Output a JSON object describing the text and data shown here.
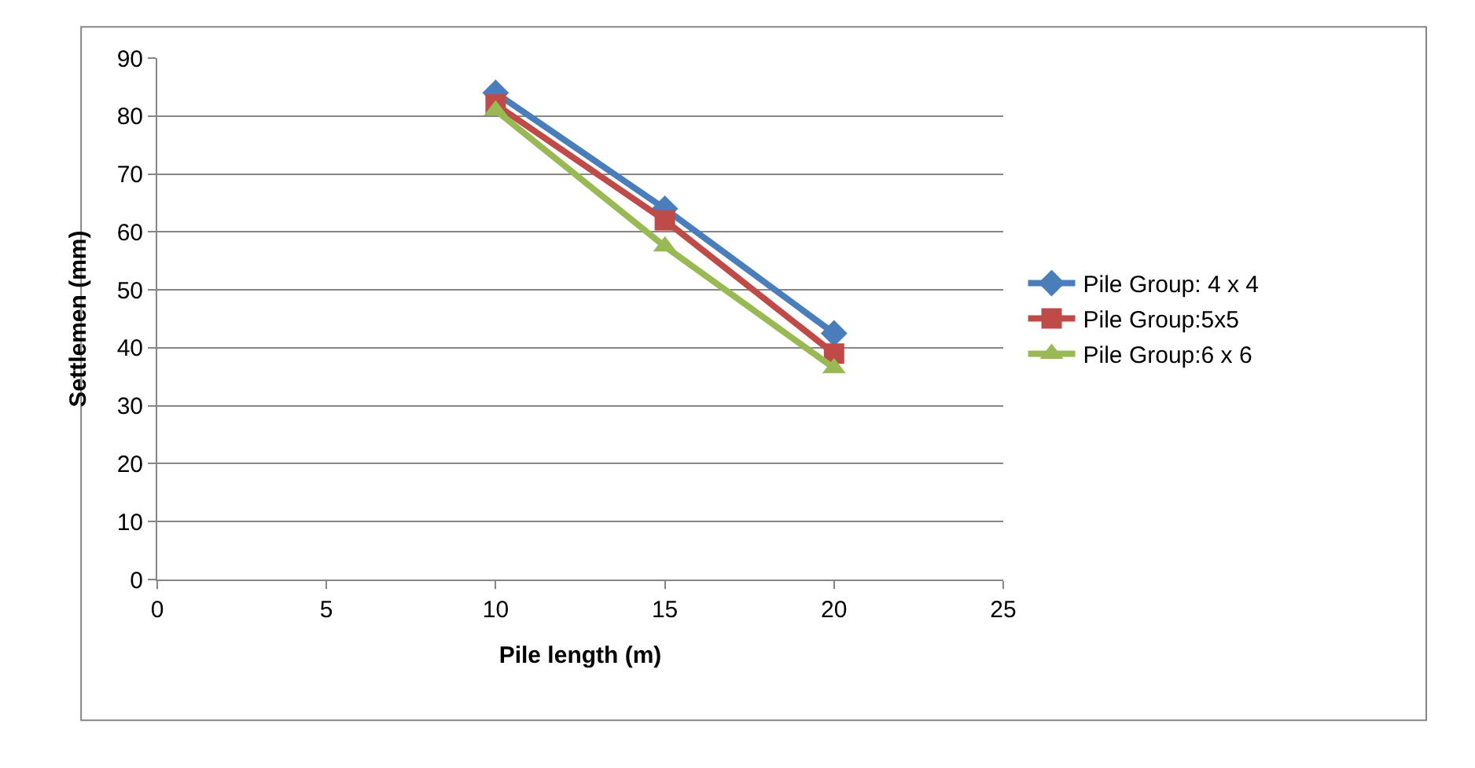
{
  "chart_data": {
    "type": "line",
    "xlabel": "Pile length (m)",
    "ylabel": "Settlemen (mm)",
    "x": [
      10,
      15,
      20
    ],
    "series": [
      {
        "name": "Pile Group: 4 x 4",
        "color": "#4a7ebb",
        "values": [
          84,
          64,
          42.5
        ],
        "marker": "diamond"
      },
      {
        "name": "Pile Group:5x5",
        "color": "#be4b48",
        "values": [
          82,
          62,
          39
        ],
        "marker": "square"
      },
      {
        "name": "Pile Group:6 x 6",
        "color": "#98b954",
        "values": [
          81,
          57.5,
          36.5
        ],
        "marker": "triangle"
      }
    ],
    "xlim": [
      0,
      25
    ],
    "xticks": [
      0,
      5,
      10,
      15,
      20,
      25
    ],
    "ylim": [
      0,
      90
    ],
    "yticks": [
      0,
      10,
      20,
      30,
      40,
      50,
      60,
      70,
      80,
      90
    ],
    "grid": "y",
    "legend": "right",
    "line_style": "solid"
  }
}
